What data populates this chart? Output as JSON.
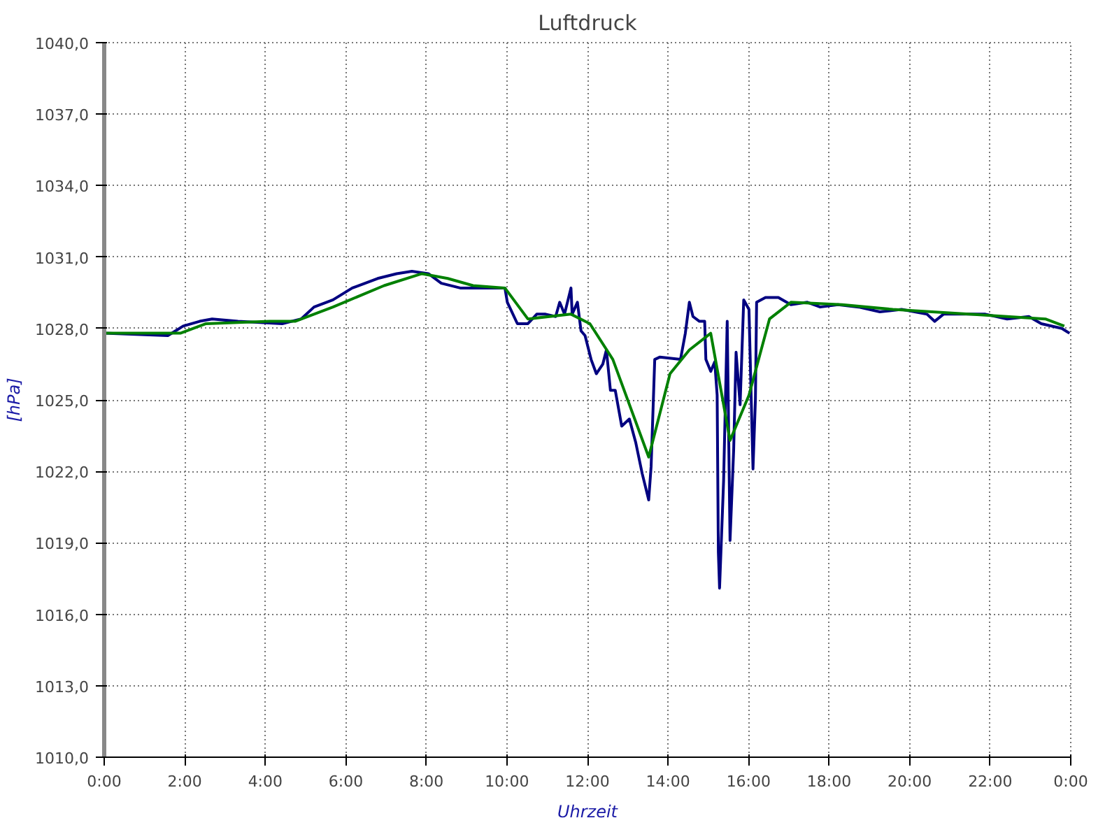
{
  "chart_data": {
    "type": "line",
    "title": "Luftdruck",
    "xlabel": "Uhrzeit",
    "ylabel": "[hPa]",
    "xlim": [
      0,
      24
    ],
    "ylim": [
      1010,
      1040
    ],
    "xticks": [
      {
        "value": 0,
        "label": "0:00"
      },
      {
        "value": 2,
        "label": "2:00"
      },
      {
        "value": 4,
        "label": "4:00"
      },
      {
        "value": 6,
        "label": "6:00"
      },
      {
        "value": 8,
        "label": "8:00"
      },
      {
        "value": 10,
        "label": "10:00"
      },
      {
        "value": 12,
        "label": "12:00"
      },
      {
        "value": 14,
        "label": "14:00"
      },
      {
        "value": 16,
        "label": "16:00"
      },
      {
        "value": 18,
        "label": "18:00"
      },
      {
        "value": 20,
        "label": "20:00"
      },
      {
        "value": 22,
        "label": "22:00"
      },
      {
        "value": 24,
        "label": "0:00"
      }
    ],
    "yticks": [
      {
        "value": 1010,
        "label": "1010,0"
      },
      {
        "value": 1013,
        "label": "1013,0"
      },
      {
        "value": 1016,
        "label": "1016,0"
      },
      {
        "value": 1019,
        "label": "1019,0"
      },
      {
        "value": 1022,
        "label": "1022,0"
      },
      {
        "value": 1025,
        "label": "1025,0"
      },
      {
        "value": 1028,
        "label": "1028,0"
      },
      {
        "value": 1031,
        "label": "1031,0"
      },
      {
        "value": 1034,
        "label": "1034,0"
      },
      {
        "value": 1037,
        "label": "1037,0"
      },
      {
        "value": 1040,
        "label": "1040,0"
      }
    ],
    "grid": true,
    "marker": "none",
    "line_style": "solid",
    "series": [
      {
        "color": "#000080",
        "x": [
          0.0,
          1.58,
          1.96,
          2.37,
          2.68,
          3.32,
          4.42,
          4.89,
          5.21,
          5.68,
          6.16,
          6.79,
          7.26,
          7.64,
          8.05,
          8.37,
          8.84,
          9.95,
          10.01,
          10.26,
          10.52,
          10.74,
          10.96,
          11.21,
          11.31,
          11.43,
          11.59,
          11.62,
          11.75,
          11.84,
          11.94,
          12.09,
          12.22,
          12.38,
          12.47,
          12.57,
          12.69,
          12.85,
          13.04,
          13.2,
          13.36,
          13.52,
          13.58,
          13.67,
          13.8,
          14.31,
          14.43,
          14.53,
          14.62,
          14.78,
          14.91,
          14.94,
          15.06,
          15.16,
          15.22,
          15.25,
          15.28,
          15.38,
          15.47,
          15.54,
          15.63,
          15.69,
          15.79,
          15.88,
          16.01,
          16.11,
          16.17,
          16.2,
          16.42,
          16.74,
          17.05,
          17.46,
          17.78,
          18.22,
          18.73,
          19.26,
          19.8,
          20.43,
          20.62,
          20.84,
          21.38,
          21.88,
          22.42,
          22.96,
          23.27,
          23.78,
          23.97
        ],
        "values": [
          1027.8,
          1027.7,
          1028.1,
          1028.3,
          1028.4,
          1028.3,
          1028.2,
          1028.4,
          1028.9,
          1029.2,
          1029.7,
          1030.1,
          1030.3,
          1030.4,
          1030.3,
          1029.9,
          1029.7,
          1029.7,
          1029.1,
          1028.2,
          1028.2,
          1028.6,
          1028.6,
          1028.5,
          1029.1,
          1028.6,
          1029.7,
          1028.6,
          1029.1,
          1027.9,
          1027.7,
          1026.7,
          1026.1,
          1026.5,
          1027.1,
          1025.4,
          1025.4,
          1023.9,
          1024.2,
          1023.2,
          1021.9,
          1020.8,
          1022.2,
          1026.7,
          1026.8,
          1026.7,
          1027.8,
          1029.1,
          1028.5,
          1028.3,
          1028.3,
          1026.7,
          1026.2,
          1026.6,
          1025.2,
          1018.6,
          1017.1,
          1021.6,
          1028.3,
          1019.1,
          1022.9,
          1027.0,
          1024.8,
          1029.2,
          1028.8,
          1022.1,
          1025.0,
          1029.1,
          1029.3,
          1029.3,
          1029.0,
          1029.1,
          1028.9,
          1029.0,
          1028.9,
          1028.7,
          1028.8,
          1028.6,
          1028.3,
          1028.6,
          1028.6,
          1028.6,
          1028.4,
          1028.5,
          1028.2,
          1028.0,
          1027.8
        ]
      },
      {
        "color": "#008000",
        "x": [
          0.0,
          1.89,
          2.53,
          4.11,
          4.74,
          5.68,
          6.95,
          7.89,
          8.53,
          9.16,
          9.95,
          10.52,
          11.59,
          12.06,
          12.63,
          13.52,
          14.05,
          14.53,
          15.06,
          15.54,
          16.01,
          16.52,
          17.05,
          18.32,
          19.58,
          21.47,
          23.37,
          23.84
        ],
        "values": [
          1027.8,
          1027.8,
          1028.2,
          1028.3,
          1028.3,
          1028.9,
          1029.8,
          1030.3,
          1030.1,
          1029.8,
          1029.7,
          1028.4,
          1028.6,
          1028.2,
          1026.7,
          1022.6,
          1026.1,
          1027.1,
          1027.8,
          1023.3,
          1025.2,
          1028.4,
          1029.1,
          1029.0,
          1028.8,
          1028.6,
          1028.4,
          1028.1
        ]
      }
    ]
  }
}
